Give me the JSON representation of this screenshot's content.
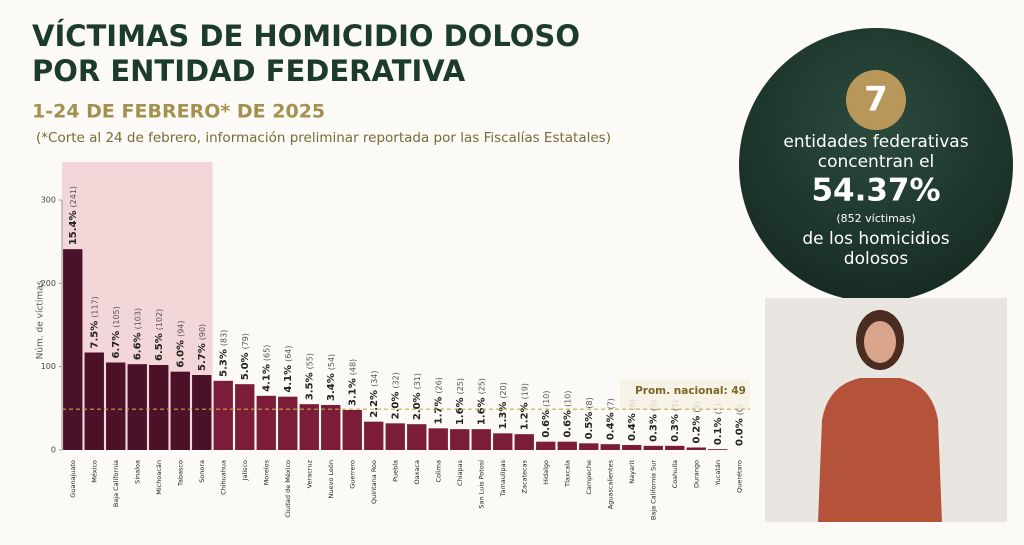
{
  "chart_data": {
    "type": "bar",
    "title_lines": [
      "VÍCTIMAS DE HOMICIDIO DOLOSO",
      "POR ENTIDAD FEDERATIVA"
    ],
    "subtitle": "1-24 DE FEBRERO* DE 2025",
    "note": "(*Corte al 24 de febrero, información preliminar reportada por las Fiscalías Estatales)",
    "y_label": "Núm. de víctimas",
    "categories": [
      "Guanajuato",
      "México",
      "Baja California",
      "Sinaloa",
      "Michoacán",
      "Tabasco",
      "Sonora",
      "Chihuahua",
      "Jalisco",
      "Morelos",
      "Ciudad de México",
      "Veracruz",
      "Nuevo León",
      "Guerrero",
      "Quintana Roo",
      "Puebla",
      "Oaxaca",
      "Colima",
      "Chiapas",
      "San Luis Potosí",
      "Tamaulipas",
      "Zacatecas",
      "Hidalgo",
      "Tlaxcala",
      "Campeche",
      "Aguascalientes",
      "Nayarit",
      "Baja California Sur",
      "Coahuila",
      "Durango",
      "Yucatán",
      "Querétaro"
    ],
    "values": [
      241,
      117,
      105,
      103,
      102,
      94,
      90,
      83,
      79,
      65,
      64,
      55,
      54,
      48,
      34,
      32,
      31,
      26,
      25,
      25,
      20,
      19,
      10,
      10,
      8,
      7,
      6,
      5,
      5,
      3,
      1,
      0
    ],
    "value_labels": [
      "(241)",
      "(117)",
      "(105)",
      "(103)",
      "(102)",
      "(94)",
      "(90)",
      "(83)",
      "(79)",
      "(65)",
      "(64)",
      "(55)",
      "(54)",
      "(48)",
      "(34)",
      "(32)",
      "(31)",
      "(26)",
      "(25)",
      "(25)",
      "(20)",
      "(19)",
      "(10)",
      "(10)",
      "(8)",
      "(7)",
      "(6)",
      "(5)",
      "(5)",
      "(3)",
      "(1)",
      "(0)"
    ],
    "percent_labels": [
      "15.4%",
      "7.5%",
      "6.7%",
      "6.6%",
      "6.5%",
      "6.0%",
      "5.7%",
      "5.3%",
      "5.0%",
      "4.1%",
      "4.1%",
      "3.5%",
      "3.4%",
      "3.1%",
      "2.2%",
      "2.0%",
      "2.0%",
      "1.7%",
      "1.6%",
      "1.6%",
      "1.3%",
      "1.2%",
      "0.6%",
      "0.6%",
      "0.5%",
      "0.4%",
      "0.4%",
      "0.3%",
      "0.3%",
      "0.2%",
      "0.1%",
      "0.0%"
    ],
    "highlight_count": 7,
    "highlight_color": "#4a1129",
    "color": "#7b1d38",
    "average": {
      "value": 49,
      "label": "Prom. nacional: 49"
    },
    "ylim": [
      0,
      300
    ],
    "yticks": [
      0,
      100,
      200,
      300
    ]
  },
  "summary": {
    "number": "7",
    "lines": [
      "entidades federativas",
      "concentran el"
    ],
    "percent": "54.37%",
    "victims": "(852  víctimas)",
    "tail": [
      "de los homicidios",
      "dolosos"
    ]
  }
}
